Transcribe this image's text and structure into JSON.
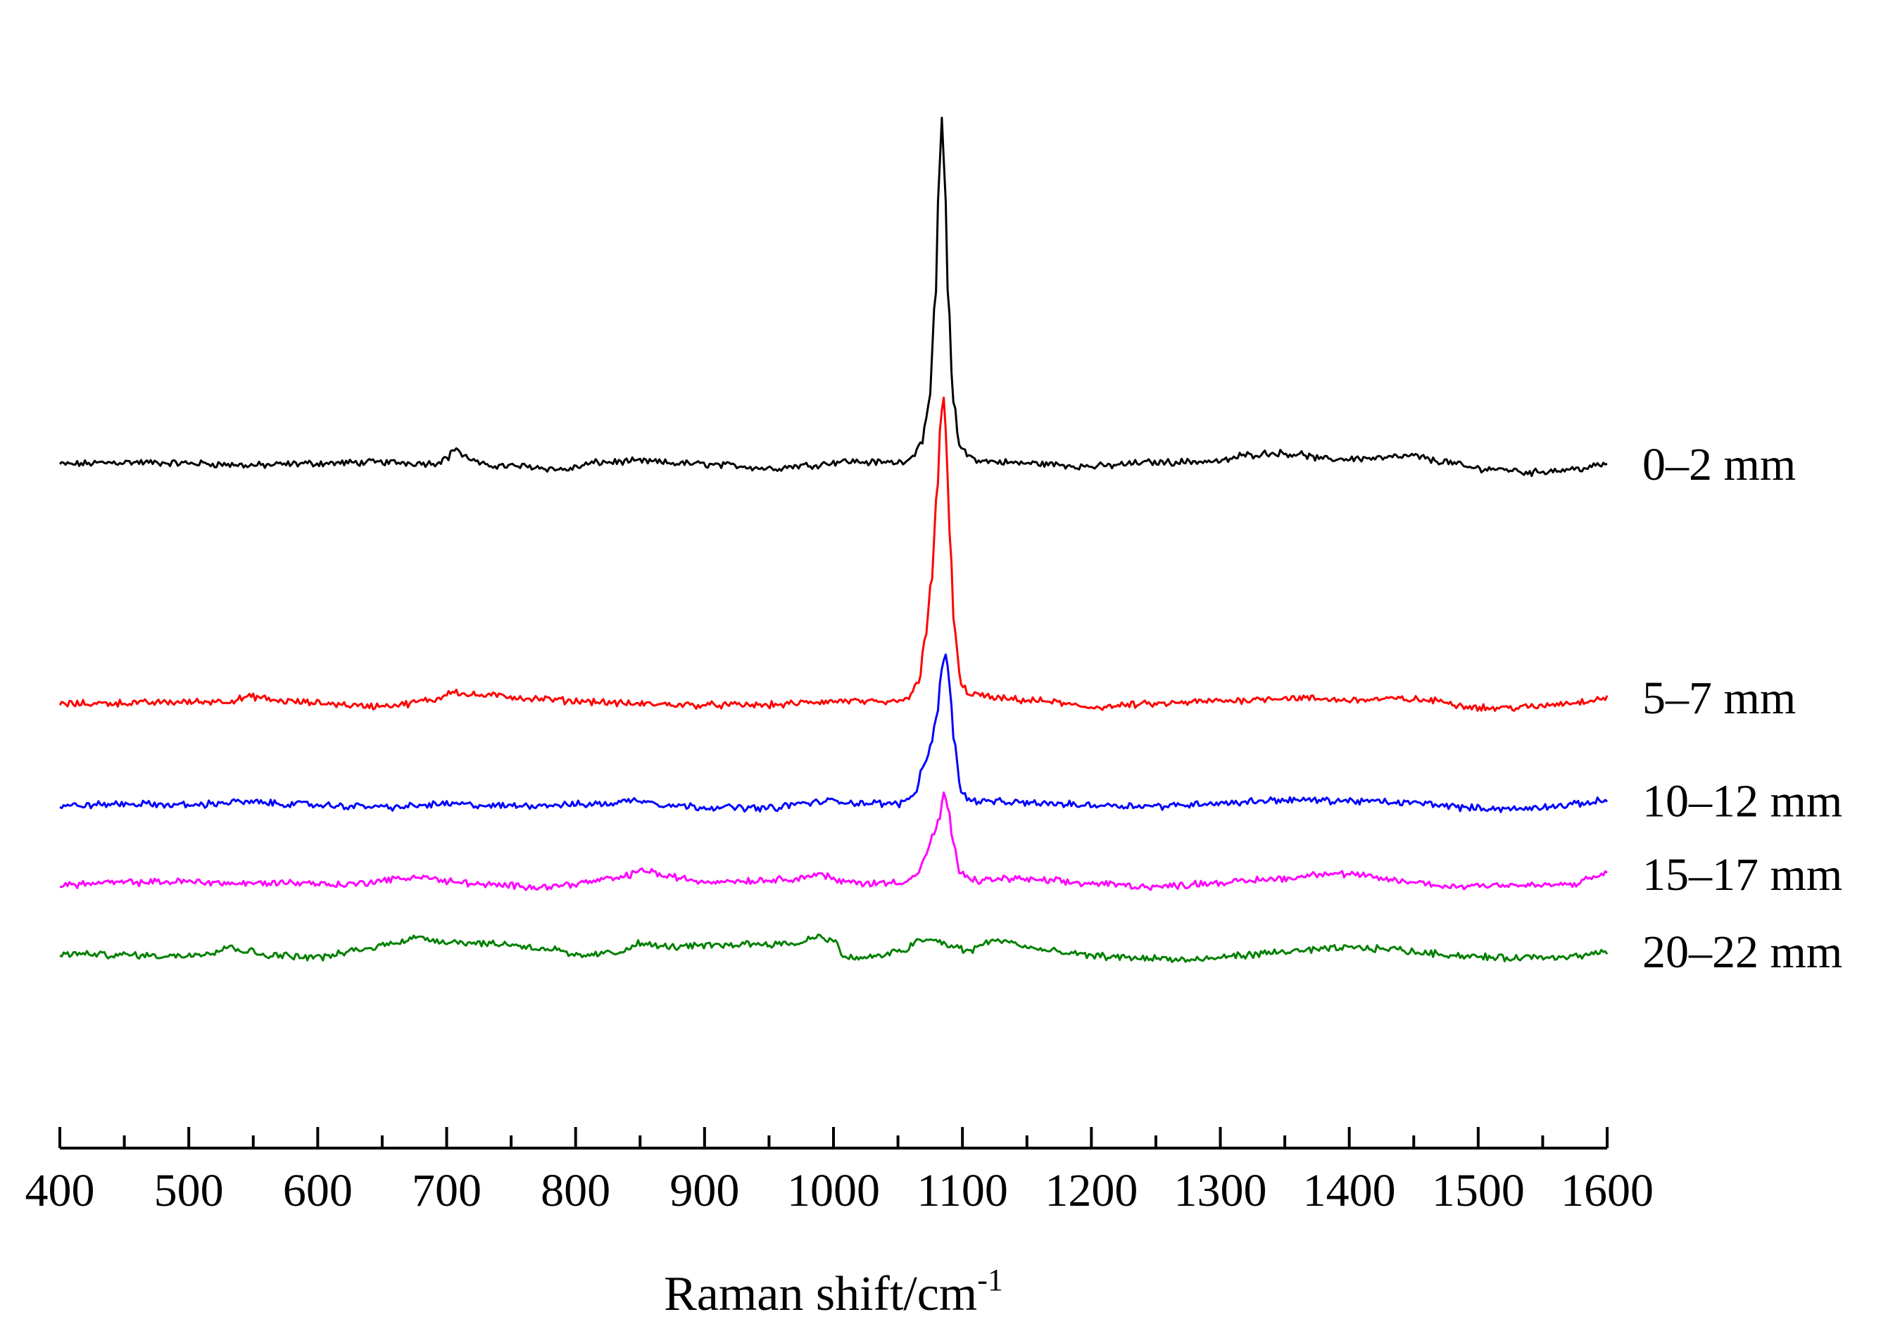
{
  "chart_data": {
    "type": "line",
    "xlabel": "Raman shift/cm",
    "xlabel_superscript": "-1",
    "xlim": [
      400,
      1600
    ],
    "x_major_ticks": [
      "400",
      "500",
      "600",
      "700",
      "800",
      "900",
      "1000",
      "1100",
      "1200",
      "1300",
      "1400",
      "1500",
      "1600"
    ],
    "x_minor_step": 50,
    "y_axis_shown": false,
    "grid": false,
    "legend": "labels at right end of each trace",
    "series": [
      {
        "name": "0–2 mm",
        "color": "#000000",
        "baseline": 0.0,
        "points": [
          [
            400,
            0
          ],
          [
            450,
            2
          ],
          [
            500,
            1
          ],
          [
            550,
            -1
          ],
          [
            600,
            1
          ],
          [
            650,
            2
          ],
          [
            690,
            1
          ],
          [
            700,
            6
          ],
          [
            707,
            16
          ],
          [
            714,
            7
          ],
          [
            730,
            -1
          ],
          [
            760,
            -2
          ],
          [
            790,
            -5
          ],
          [
            820,
            2
          ],
          [
            850,
            3
          ],
          [
            880,
            1
          ],
          [
            920,
            -1
          ],
          [
            950,
            -4
          ],
          [
            980,
            -1
          ],
          [
            1010,
            3
          ],
          [
            1030,
            2
          ],
          [
            1050,
            2
          ],
          [
            1060,
            6
          ],
          [
            1068,
            22
          ],
          [
            1074,
            55
          ],
          [
            1079,
            160
          ],
          [
            1082,
            290
          ],
          [
            1084,
            340
          ],
          [
            1086,
            290
          ],
          [
            1089,
            160
          ],
          [
            1093,
            60
          ],
          [
            1098,
            18
          ],
          [
            1105,
            8
          ],
          [
            1115,
            3
          ],
          [
            1150,
            1
          ],
          [
            1200,
            -2
          ],
          [
            1250,
            2
          ],
          [
            1300,
            3
          ],
          [
            1320,
            9
          ],
          [
            1340,
            11
          ],
          [
            1360,
            10
          ],
          [
            1380,
            5
          ],
          [
            1420,
            6
          ],
          [
            1450,
            8
          ],
          [
            1470,
            3
          ],
          [
            1500,
            -4
          ],
          [
            1520,
            -5
          ],
          [
            1540,
            -8
          ],
          [
            1560,
            -6
          ],
          [
            1580,
            -4
          ],
          [
            1600,
            0
          ]
        ]
      },
      {
        "name": "5–7 mm",
        "color": "#ff0000",
        "baseline": -235,
        "points": [
          [
            400,
            0
          ],
          [
            450,
            1
          ],
          [
            500,
            2
          ],
          [
            530,
            3
          ],
          [
            550,
            7
          ],
          [
            570,
            3
          ],
          [
            600,
            1
          ],
          [
            640,
            -2
          ],
          [
            660,
            -1
          ],
          [
            690,
            4
          ],
          [
            705,
            13
          ],
          [
            715,
            9
          ],
          [
            740,
            8
          ],
          [
            770,
            5
          ],
          [
            800,
            3
          ],
          [
            850,
            0
          ],
          [
            900,
            -1
          ],
          [
            950,
            -1
          ],
          [
            990,
            2
          ],
          [
            1010,
            3
          ],
          [
            1040,
            1
          ],
          [
            1058,
            5
          ],
          [
            1066,
            22
          ],
          [
            1071,
            65
          ],
          [
            1076,
            120
          ],
          [
            1080,
            200
          ],
          [
            1083,
            270
          ],
          [
            1085,
            305
          ],
          [
            1087,
            270
          ],
          [
            1090,
            170
          ],
          [
            1094,
            70
          ],
          [
            1099,
            18
          ],
          [
            1106,
            10
          ],
          [
            1130,
            5
          ],
          [
            1160,
            3
          ],
          [
            1200,
            -3
          ],
          [
            1250,
            0
          ],
          [
            1300,
            3
          ],
          [
            1350,
            6
          ],
          [
            1400,
            4
          ],
          [
            1440,
            5
          ],
          [
            1470,
            3
          ],
          [
            1490,
            -2
          ],
          [
            1510,
            -4
          ],
          [
            1540,
            -3
          ],
          [
            1570,
            1
          ],
          [
            1600,
            6
          ]
        ]
      },
      {
        "name": "10–12 mm",
        "color": "#0000ff",
        "baseline": -335,
        "points": [
          [
            400,
            0
          ],
          [
            450,
            2
          ],
          [
            500,
            1
          ],
          [
            540,
            4
          ],
          [
            580,
            2
          ],
          [
            620,
            0
          ],
          [
            660,
            -1
          ],
          [
            700,
            2
          ],
          [
            740,
            0
          ],
          [
            780,
            1
          ],
          [
            820,
            2
          ],
          [
            850,
            6
          ],
          [
            858,
            4
          ],
          [
            870,
            1
          ],
          [
            900,
            -1
          ],
          [
            950,
            -2
          ],
          [
            980,
            3
          ],
          [
            1000,
            5
          ],
          [
            1020,
            3
          ],
          [
            1050,
            2
          ],
          [
            1062,
            10
          ],
          [
            1070,
            40
          ],
          [
            1076,
            60
          ],
          [
            1080,
            90
          ],
          [
            1084,
            135
          ],
          [
            1087,
            150
          ],
          [
            1090,
            120
          ],
          [
            1094,
            60
          ],
          [
            1099,
            12
          ],
          [
            1108,
            5
          ],
          [
            1150,
            3
          ],
          [
            1200,
            1
          ],
          [
            1250,
            0
          ],
          [
            1300,
            3
          ],
          [
            1350,
            6
          ],
          [
            1400,
            5
          ],
          [
            1450,
            3
          ],
          [
            1500,
            -2
          ],
          [
            1530,
            -3
          ],
          [
            1560,
            0
          ],
          [
            1600,
            5
          ]
        ]
      },
      {
        "name": "15–17 mm",
        "color": "#ff00ff",
        "baseline": -412,
        "points": [
          [
            400,
            0
          ],
          [
            450,
            2
          ],
          [
            500,
            3
          ],
          [
            540,
            1
          ],
          [
            580,
            2
          ],
          [
            620,
            0
          ],
          [
            660,
            5
          ],
          [
            680,
            8
          ],
          [
            700,
            3
          ],
          [
            740,
            -1
          ],
          [
            780,
            -2
          ],
          [
            800,
            1
          ],
          [
            830,
            6
          ],
          [
            855,
            14
          ],
          [
            870,
            8
          ],
          [
            900,
            3
          ],
          [
            940,
            4
          ],
          [
            970,
            6
          ],
          [
            990,
            10
          ],
          [
            1005,
            3
          ],
          [
            1030,
            1
          ],
          [
            1055,
            3
          ],
          [
            1065,
            10
          ],
          [
            1072,
            30
          ],
          [
            1078,
            50
          ],
          [
            1082,
            65
          ],
          [
            1086,
            88
          ],
          [
            1089,
            75
          ],
          [
            1093,
            40
          ],
          [
            1098,
            10
          ],
          [
            1110,
            4
          ],
          [
            1140,
            6
          ],
          [
            1160,
            4
          ],
          [
            1200,
            1
          ],
          [
            1250,
            -2
          ],
          [
            1300,
            2
          ],
          [
            1350,
            6
          ],
          [
            1380,
            11
          ],
          [
            1400,
            10
          ],
          [
            1430,
            5
          ],
          [
            1450,
            2
          ],
          [
            1480,
            -2
          ],
          [
            1510,
            0
          ],
          [
            1540,
            -1
          ],
          [
            1570,
            0
          ],
          [
            1600,
            10
          ]
        ]
      },
      {
        "name": "20–22 mm",
        "color": "#008000",
        "baseline": -480,
        "points": [
          [
            400,
            0
          ],
          [
            450,
            -1
          ],
          [
            490,
            -2
          ],
          [
            520,
            2
          ],
          [
            530,
            7
          ],
          [
            545,
            3
          ],
          [
            560,
            -1
          ],
          [
            600,
            -3
          ],
          [
            640,
            5
          ],
          [
            660,
            12
          ],
          [
            680,
            16
          ],
          [
            700,
            12
          ],
          [
            740,
            10
          ],
          [
            780,
            5
          ],
          [
            800,
            -2
          ],
          [
            830,
            1
          ],
          [
            850,
            10
          ],
          [
            870,
            7
          ],
          [
            900,
            8
          ],
          [
            940,
            10
          ],
          [
            970,
            10
          ],
          [
            990,
            18
          ],
          [
            1000,
            12
          ],
          [
            1010,
            -4
          ],
          [
            1030,
            -3
          ],
          [
            1055,
            3
          ],
          [
            1065,
            13
          ],
          [
            1080,
            13
          ],
          [
            1090,
            8
          ],
          [
            1105,
            3
          ],
          [
            1120,
            12
          ],
          [
            1135,
            13
          ],
          [
            1150,
            6
          ],
          [
            1180,
            1
          ],
          [
            1200,
            -2
          ],
          [
            1240,
            -4
          ],
          [
            1280,
            -6
          ],
          [
            1320,
            -1
          ],
          [
            1360,
            3
          ],
          [
            1400,
            6
          ],
          [
            1430,
            5
          ],
          [
            1460,
            1
          ],
          [
            1490,
            -2
          ],
          [
            1520,
            -4
          ],
          [
            1550,
            -3
          ],
          [
            1580,
            -2
          ],
          [
            1600,
            2
          ]
        ]
      }
    ]
  }
}
